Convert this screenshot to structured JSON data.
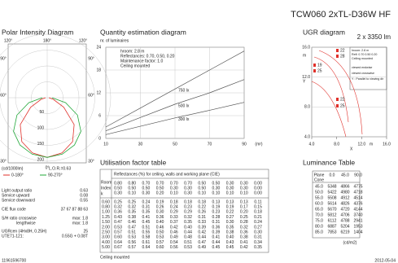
{
  "header": {
    "title": "TCW060 2xTL-D36W HF",
    "subtitle": "2 x 3350 lm"
  },
  "polar": {
    "type": "polar",
    "title": "Polar Intensity Diagram",
    "angle_labels": [
      "120°",
      "180°",
      "120°",
      "90°",
      "90°",
      "60°",
      "60°",
      "30°",
      "0°",
      "30°"
    ],
    "rticks": [
      50,
      100,
      150,
      200
    ],
    "unit": "(cd/1000lm)",
    "lor": "L.O.R.=0.63",
    "angles": [
      -90,
      -75,
      -60,
      -45,
      -30,
      -15,
      0,
      15,
      30,
      45,
      60,
      75,
      90
    ],
    "series": [
      {
        "name": "0-180°",
        "color": "#e0302a",
        "values": [
          5,
          20,
          60,
          120,
          160,
          180,
          188,
          180,
          160,
          120,
          60,
          20,
          5
        ]
      },
      {
        "name": "90-270°",
        "color": "#22a83a",
        "values": [
          15,
          60,
          110,
          150,
          172,
          184,
          188,
          184,
          172,
          150,
          110,
          60,
          15
        ]
      }
    ]
  },
  "quantity": {
    "type": "line",
    "title": "Quantity estimation diagram",
    "ylabel": "nr. of luminaires",
    "notes": [
      "hroom: 2.8 m",
      "Reflectances: 0.70, 0.50, 0.20",
      "Maintenance factor: 1.0",
      "Ceiling mounted"
    ],
    "x": [
      10,
      30,
      50,
      70,
      90
    ],
    "xlim": [
      10,
      90
    ],
    "xticks": [
      10,
      30,
      50,
      70,
      90
    ],
    "xunit": "(m²)",
    "ylim": [
      0,
      24
    ],
    "yticks": [
      0,
      6,
      12,
      18,
      24
    ],
    "series": [
      {
        "name": "750 lx",
        "color": "#555",
        "values": [
          3,
          8,
          13,
          18,
          23
        ]
      },
      {
        "name": "500 lx",
        "color": "#555",
        "values": [
          2,
          5.5,
          9,
          12,
          15.5
        ]
      },
      {
        "name": "300 lx",
        "color": "#555",
        "values": [
          1,
          3.2,
          5.4,
          7.4,
          9.5
        ]
      }
    ]
  },
  "ugr": {
    "title": "UGR diagram",
    "xlim": [
      4,
      16
    ],
    "ylim": [
      4,
      16
    ],
    "xticks": [
      {
        "value": 4,
        "label": "4.0"
      },
      {
        "value": 8,
        "label": "8.0"
      },
      {
        "value": 12,
        "label": "12.0"
      },
      {
        "value": 16,
        "label": "16.0"
      }
    ],
    "yticks": [
      {
        "value": 4,
        "label": "4.0"
      },
      {
        "value": 8,
        "label": "8.0"
      },
      {
        "value": 12,
        "label": "12.0"
      },
      {
        "value": 16,
        "label": "16.0"
      }
    ],
    "xunit": "m",
    "yunit": "m",
    "xlabel": "X",
    "ylabel": "Y",
    "labels": [
      "22",
      "28",
      "19",
      "25",
      "22",
      "25"
    ],
    "legend": [
      "hroom: 2.8 m",
      "Refl: 0.70 0.50 0.20",
      "Ceiling mounted",
      "viewed endwise",
      "viewed crosswise",
      "Y : Parallel to viewing dir"
    ]
  },
  "stats": [
    [
      "Light output ratio",
      "0.63"
    ],
    [
      "Service upward",
      "0.08"
    ],
    [
      "Service downward",
      "0.55"
    ],
    [
      "CIE flux code",
      "37 67 87 88 63"
    ],
    [
      "S/H ratio crosswise",
      "max: 1.8"
    ],
    [
      "lengthwise",
      "max: 1.8"
    ],
    [
      "UGRcen (4Hx8H, 0.25H)",
      "25"
    ],
    [
      "UTE71-121:",
      "0.55G + 0.08T"
    ]
  ],
  "util": {
    "title": "Utilisation factor table",
    "header": "Reflectances (%) for ceiling, walls and working plane (CIE)",
    "rowhead": [
      "Room",
      "Index",
      "k"
    ],
    "refl": [
      [
        "0.80",
        "0.80",
        "0.70",
        "0.70",
        "0.70",
        "0.70",
        "0.50",
        "0.50",
        "0.30",
        "0.30",
        "0.00"
      ],
      [
        "0.50",
        "0.50",
        "0.50",
        "0.50",
        "0.30",
        "0.30",
        "0.50",
        "0.30",
        "0.30",
        "0.30",
        "0.00"
      ],
      [
        "0.30",
        "0.10",
        "0.30",
        "0.20",
        "0.10",
        "0.30",
        "0.10",
        "0.10",
        "0.10",
        "0.10",
        "0.00"
      ]
    ],
    "k": [
      "0.60",
      "0.80",
      "1.00",
      "1.25",
      "1.50",
      "2.00",
      "2.50",
      "3.00",
      "4.00",
      "5.00"
    ],
    "rows": [
      [
        "0.25",
        "0.25",
        "0.24",
        "0.19",
        "0.18",
        "0.18",
        "0.18",
        "0.13",
        "0.13",
        "0.13",
        "0.11"
      ],
      [
        "0.32",
        "0.32",
        "0.31",
        "0.26",
        "0.24",
        "0.23",
        "0.22",
        "0.19",
        "0.19",
        "0.17",
        "0.15"
      ],
      [
        "0.36",
        "0.35",
        "0.35",
        "0.30",
        "0.29",
        "0.29",
        "0.26",
        "0.23",
        "0.22",
        "0.20",
        "0.18"
      ],
      [
        "0.43",
        "0.38",
        "0.41",
        "0.36",
        "0.33",
        "0.32",
        "0.31",
        "0.28",
        "0.27",
        "0.25",
        "0.21"
      ],
      [
        "0.47",
        "0.46",
        "0.45",
        "0.40",
        "0.37",
        "0.35",
        "0.33",
        "0.31",
        "0.30",
        "0.28",
        "0.24"
      ],
      [
        "0.53",
        "0.47",
        "0.51",
        "0.46",
        "0.42",
        "0.40",
        "0.39",
        "0.36",
        "0.35",
        "0.32",
        "0.27"
      ],
      [
        "0.57",
        "0.51",
        "0.55",
        "0.50",
        "0.46",
        "0.44",
        "0.42",
        "0.39",
        "0.38",
        "0.36",
        "0.30"
      ],
      [
        "0.60",
        "0.53",
        "0.58",
        "0.53",
        "0.49",
        "0.48",
        "0.44",
        "0.41",
        "0.40",
        "0.38",
        "0.31"
      ],
      [
        "0.64",
        "0.56",
        "0.61",
        "0.57",
        "0.54",
        "0.51",
        "0.47",
        "0.44",
        "0.43",
        "0.41",
        "0.34"
      ],
      [
        "0.67",
        "0.57",
        "0.64",
        "0.60",
        "0.56",
        "0.53",
        "0.49",
        "0.45",
        "0.45",
        "0.42",
        "0.35"
      ]
    ],
    "footer": "Ceiling mounted"
  },
  "luminance": {
    "title": "Luminance Table",
    "cols": [
      "Plane",
      "0.0",
      "45.0",
      "90.0"
    ],
    "cone": "Cone",
    "rows": [
      [
        "45.0",
        "5348",
        "4866",
        "4775"
      ],
      [
        "50.0",
        "5422",
        "4980",
        "4718"
      ],
      [
        "55.0",
        "5508",
        "4912",
        "4514"
      ],
      [
        "60.0",
        "5614",
        "4826",
        "4376"
      ],
      [
        "65.0",
        "5670",
        "4720",
        "4144"
      ],
      [
        "70.0",
        "5812",
        "4706",
        "3740"
      ],
      [
        "75.0",
        "6112",
        "4788",
        "2941"
      ],
      [
        "80.0",
        "6887",
        "5204",
        "1953"
      ],
      [
        "85.0",
        "7853",
        "6219",
        "1404"
      ]
    ],
    "unit": "(cd/m2)"
  },
  "footer": {
    "left": "11961596700",
    "right": "2012-05-04"
  }
}
